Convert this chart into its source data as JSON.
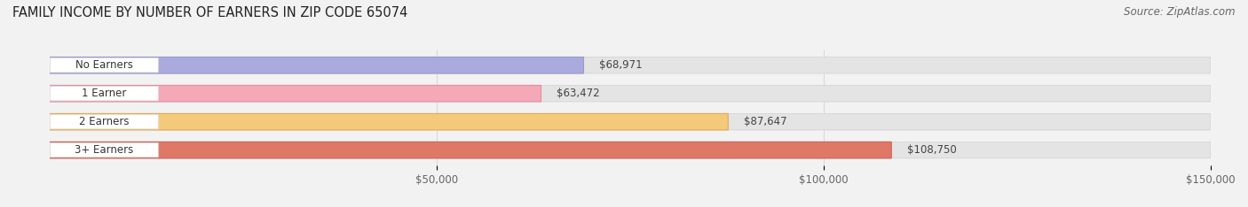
{
  "title": "FAMILY INCOME BY NUMBER OF EARNERS IN ZIP CODE 65074",
  "source": "Source: ZipAtlas.com",
  "categories": [
    "No Earners",
    "1 Earner",
    "2 Earners",
    "3+ Earners"
  ],
  "values": [
    68971,
    63472,
    87647,
    108750
  ],
  "labels": [
    "$68,971",
    "$63,472",
    "$87,647",
    "$108,750"
  ],
  "bar_colors": [
    "#aaaadd",
    "#f4a8b8",
    "#f5c97a",
    "#e07868"
  ],
  "bar_edge_colors": [
    "#9999cc",
    "#e090a0",
    "#e0aa55",
    "#cc6055"
  ],
  "background_color": "#f2f2f2",
  "bar_bg_color": "#e4e4e4",
  "bar_bg_edge_color": "#d0d0d0",
  "xlim": [
    0,
    150000
  ],
  "xticks": [
    50000,
    100000,
    150000
  ],
  "xticklabels": [
    "$50,000",
    "$100,000",
    "$150,000"
  ],
  "title_fontsize": 10.5,
  "source_fontsize": 8.5,
  "label_fontsize": 8.5,
  "category_fontsize": 8.5,
  "tick_fontsize": 8.5
}
